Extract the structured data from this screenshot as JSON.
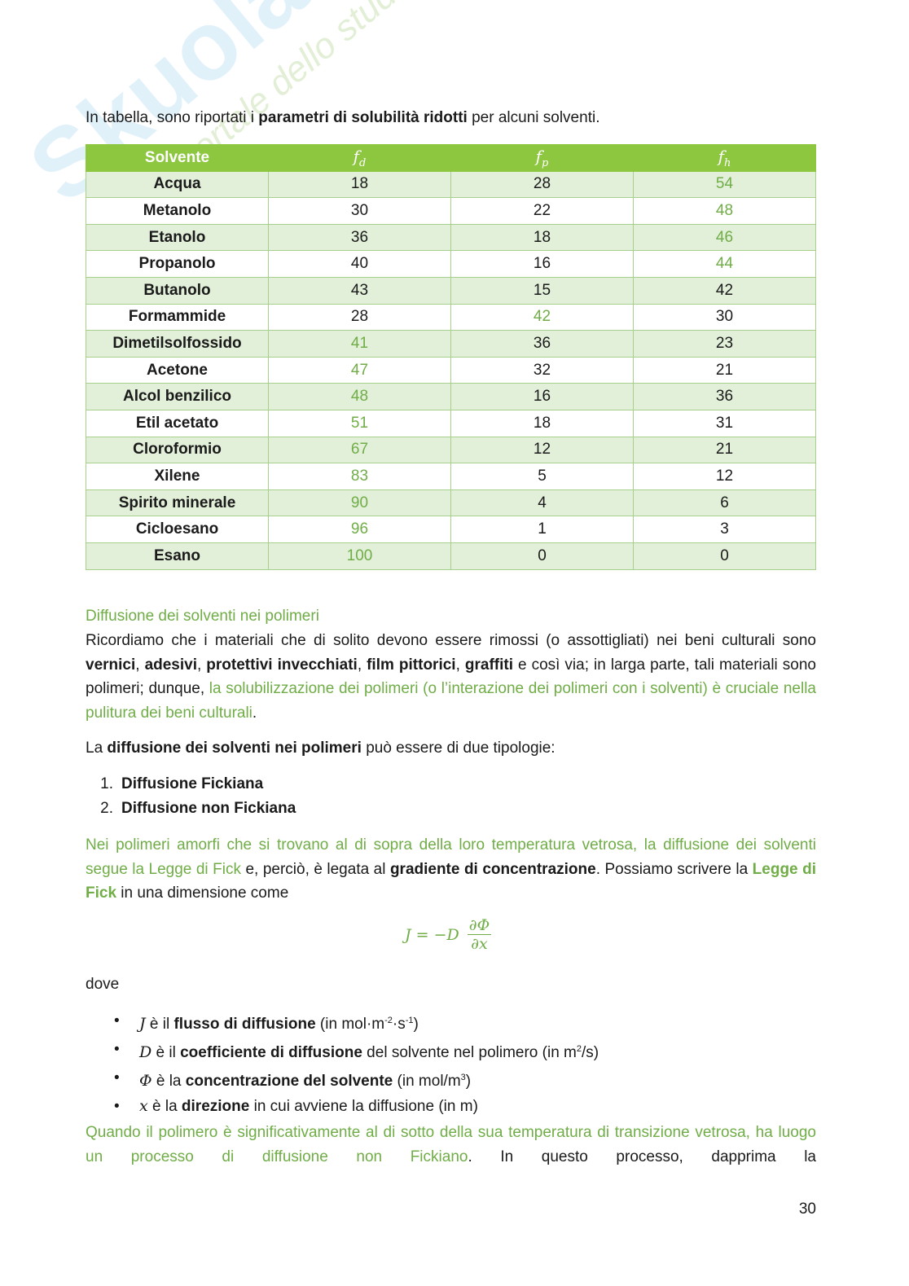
{
  "watermark": {
    "brand": "Skuola.net",
    "tagline": "il portale dello studente"
  },
  "intro": {
    "runs": [
      {
        "text": "In tabella, sono riportati i ",
        "style": "plain"
      },
      {
        "text": "parametri di solubilità ridotti",
        "style": "bold"
      },
      {
        "text": " per alcuni solventi.",
        "style": "plain"
      }
    ]
  },
  "table": {
    "header": {
      "label": "Solvente",
      "params": [
        {
          "symbol": "f",
          "sub": "d"
        },
        {
          "symbol": "f",
          "sub": "p"
        },
        {
          "symbol": "f",
          "sub": "h"
        }
      ]
    },
    "rows": [
      {
        "name": "Acqua",
        "cells": [
          "18",
          "28",
          "54"
        ],
        "highlight": 2
      },
      {
        "name": "Metanolo",
        "cells": [
          "30",
          "22",
          "48"
        ],
        "highlight": 2
      },
      {
        "name": "Etanolo",
        "cells": [
          "36",
          "18",
          "46"
        ],
        "highlight": 2
      },
      {
        "name": "Propanolo",
        "cells": [
          "40",
          "16",
          "44"
        ],
        "highlight": 2
      },
      {
        "name": "Butanolo",
        "cells": [
          "43",
          "15",
          "42"
        ],
        "highlight": null
      },
      {
        "name": "Formammide",
        "cells": [
          "28",
          "42",
          "30"
        ],
        "highlight": 1
      },
      {
        "name": "Dimetilsolfossido",
        "cells": [
          "41",
          "36",
          "23"
        ],
        "highlight": 0
      },
      {
        "name": "Acetone",
        "cells": [
          "47",
          "32",
          "21"
        ],
        "highlight": 0
      },
      {
        "name": "Alcol benzilico",
        "cells": [
          "48",
          "16",
          "36"
        ],
        "highlight": 0
      },
      {
        "name": "Etil acetato",
        "cells": [
          "51",
          "18",
          "31"
        ],
        "highlight": 0
      },
      {
        "name": "Cloroformio",
        "cells": [
          "67",
          "12",
          "21"
        ],
        "highlight": 0
      },
      {
        "name": "Xilene",
        "cells": [
          "83",
          "5",
          "12"
        ],
        "highlight": 0
      },
      {
        "name": "Spirito minerale",
        "cells": [
          "90",
          "4",
          "6"
        ],
        "highlight": 0
      },
      {
        "name": "Cicloesano",
        "cells": [
          "96",
          "1",
          "3"
        ],
        "highlight": 0
      },
      {
        "name": "Esano",
        "cells": [
          "100",
          "0",
          "0"
        ],
        "highlight": 0
      }
    ]
  },
  "section_heading": "Diffusione dei solventi nei polimeri",
  "paragraphs": [
    {
      "runs": [
        {
          "text": "Ricordiamo che i materiali che di solito devono essere rimossi (o assottigliati) nei beni culturali sono ",
          "style": "plain"
        },
        {
          "text": "vernici",
          "style": "bold"
        },
        {
          "text": ", ",
          "style": "plain"
        },
        {
          "text": "adesivi",
          "style": "bold"
        },
        {
          "text": ", ",
          "style": "plain"
        },
        {
          "text": "protettivi invecchiati",
          "style": "bold"
        },
        {
          "text": ", ",
          "style": "plain"
        },
        {
          "text": "film pittorici",
          "style": "bold"
        },
        {
          "text": ", ",
          "style": "plain"
        },
        {
          "text": "graffiti",
          "style": "bold"
        },
        {
          "text": " e così via; in larga parte, tali materiali sono polimeri; dunque, ",
          "style": "plain"
        },
        {
          "text": "la solubilizzazione dei polimeri (o l’interazione dei polimeri con i solventi) è cruciale nella pulitura dei beni culturali",
          "style": "green"
        },
        {
          "text": ".",
          "style": "plain"
        }
      ]
    },
    {
      "runs": [
        {
          "text": "La ",
          "style": "plain"
        },
        {
          "text": "diffusione dei solventi nei polimeri",
          "style": "bold"
        },
        {
          "text": " può essere di due tipologie:",
          "style": "plain"
        }
      ]
    }
  ],
  "ordered_list": [
    {
      "marker": "1.",
      "text": "Diffusione Fickiana"
    },
    {
      "marker": "2.",
      "text": "Diffusione non Fickiana"
    }
  ],
  "fick_paragraph": {
    "runs": [
      {
        "text": "Nei polimeri amorfi che si trovano al di sopra della loro temperatura vetrosa, la diffusione dei solventi segue la Legge di Fick",
        "style": "green"
      },
      {
        "text": " e, perciò, è legata al ",
        "style": "plain"
      },
      {
        "text": "gradiente di concentrazione",
        "style": "bold"
      },
      {
        "text": ". Possiamo scrivere la ",
        "style": "plain"
      },
      {
        "text": "Legge di Fick",
        "style": "green-bold"
      },
      {
        "text": " in una dimensione come",
        "style": "plain"
      }
    ]
  },
  "formula": {
    "lhs": "J = −D",
    "numerator": "∂Φ",
    "denominator": "∂x"
  },
  "where": "dove",
  "bullets": [
    {
      "runs": [
        {
          "text": "J",
          "style": "math"
        },
        {
          "text": " è il ",
          "style": "plain"
        },
        {
          "text": "flusso di diffusione",
          "style": "bold"
        },
        {
          "text": " (in mol·m",
          "style": "plain"
        },
        {
          "text": "-2",
          "style": "sup"
        },
        {
          "text": "·s",
          "style": "plain"
        },
        {
          "text": "-1",
          "style": "sup"
        },
        {
          "text": ")",
          "style": "plain"
        }
      ]
    },
    {
      "runs": [
        {
          "text": "D",
          "style": "math"
        },
        {
          "text": " è il ",
          "style": "plain"
        },
        {
          "text": "coefficiente di diffusione",
          "style": "bold"
        },
        {
          "text": " del solvente nel polimero (in m",
          "style": "plain"
        },
        {
          "text": "2",
          "style": "sup"
        },
        {
          "text": "/s)",
          "style": "plain"
        }
      ]
    },
    {
      "runs": [
        {
          "text": "Φ",
          "style": "math"
        },
        {
          "text": " è la ",
          "style": "plain"
        },
        {
          "text": "concentrazione del solvente",
          "style": "bold"
        },
        {
          "text": " (in mol/m",
          "style": "plain"
        },
        {
          "text": "3",
          "style": "sup"
        },
        {
          "text": ")",
          "style": "plain"
        }
      ]
    },
    {
      "runs": [
        {
          "text": "x",
          "style": "math"
        },
        {
          "text": " è la ",
          "style": "plain"
        },
        {
          "text": "direzione",
          "style": "bold"
        },
        {
          "text": " in cui avviene la diffusione (in m)",
          "style": "plain"
        }
      ]
    }
  ],
  "closing_paragraph": {
    "runs": [
      {
        "text": "Quando il polimero è significativamente al di sotto della sua temperatura di transizione vetrosa, ha luogo un processo di diffusione non Fickiano",
        "style": "green"
      },
      {
        "text": ". In questo processo, dapprima la",
        "style": "plain"
      }
    ]
  },
  "page_number": "30"
}
